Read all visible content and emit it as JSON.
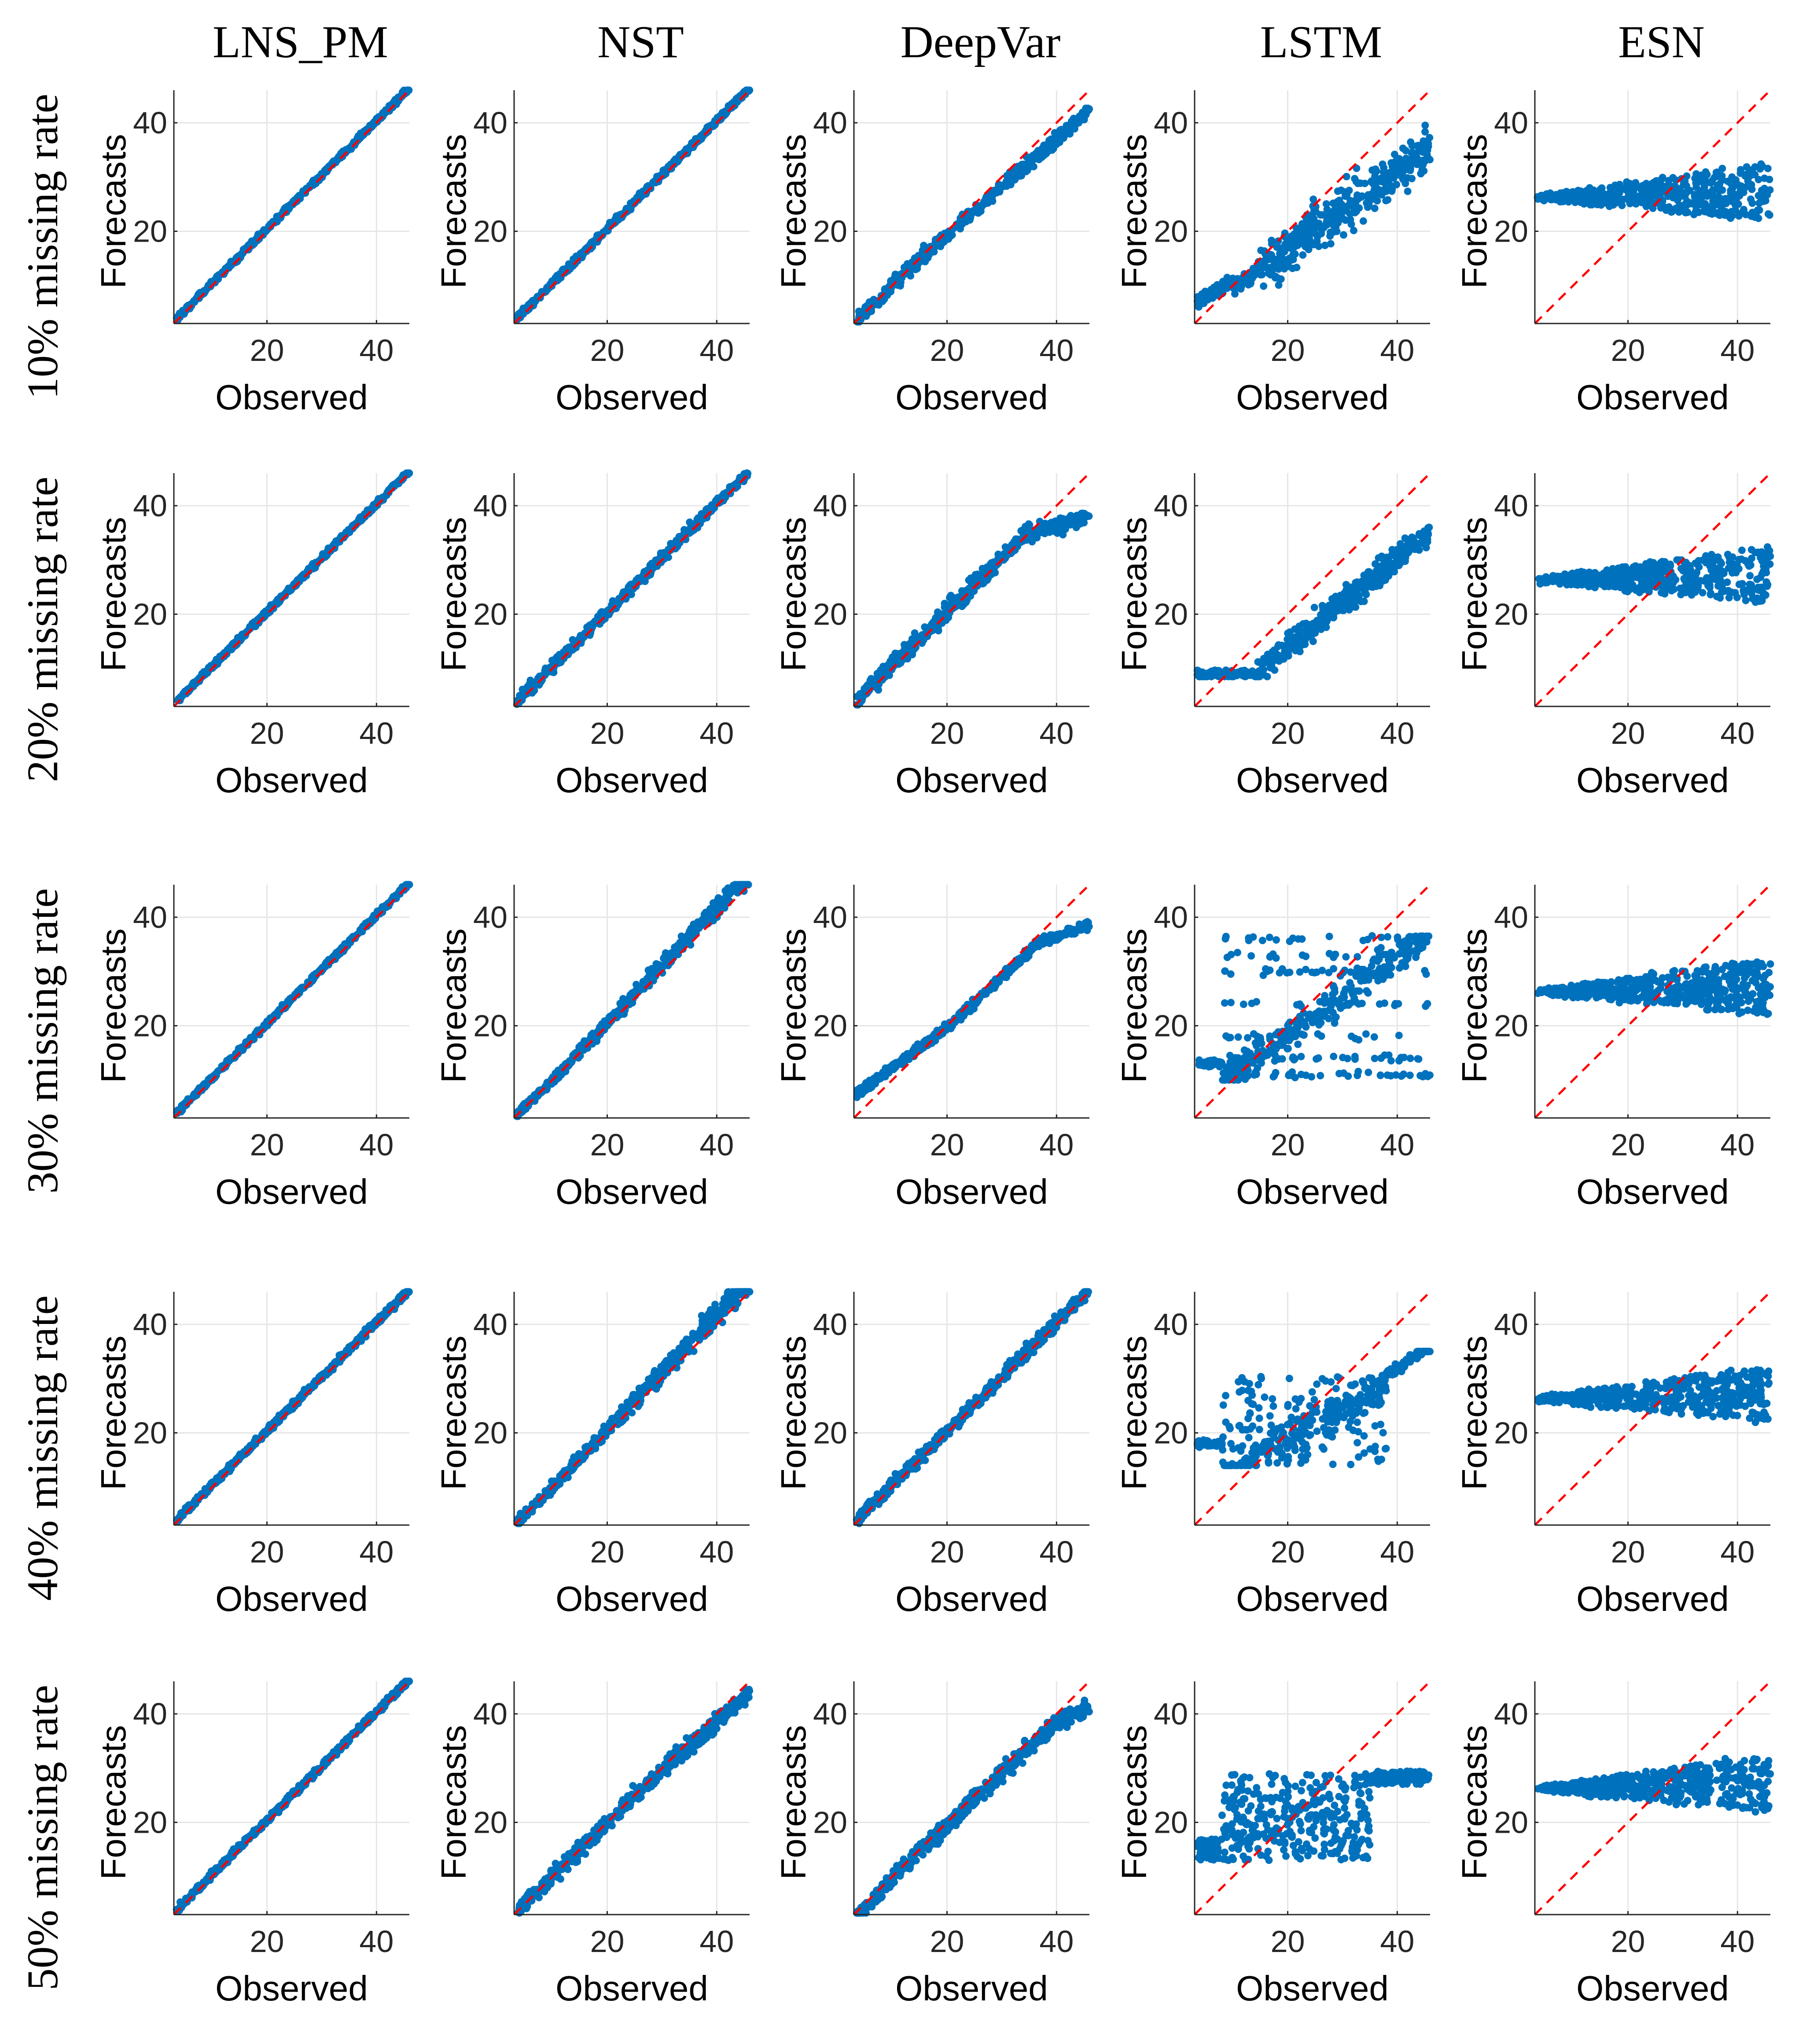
{
  "figure": {
    "column_titles": [
      "LNS_PM",
      "NST",
      "DeepVar",
      "LSTM",
      "ESN"
    ],
    "row_labels": [
      "10% missing rate",
      "20% missing rate",
      "30% missing rate",
      "40% missing rate",
      "50% missing rate"
    ]
  },
  "colors": {
    "points": "#0072bd",
    "reference_line": "#ff0000",
    "grid": "#e6e6e6",
    "axis": "#262626"
  },
  "chart_data": {
    "type": "scatter",
    "xlabel": "Observed",
    "ylabel": "Forecasts",
    "xlim": [
      3,
      46
    ],
    "ylim": [
      3,
      46
    ],
    "xticks": [
      20,
      40
    ],
    "yticks": [
      20,
      40
    ],
    "grid": true,
    "reference_line": "y = x (red dashed)",
    "panels": [
      {
        "row": 0,
        "col": 0,
        "model": "LNS_PM",
        "rate": "10%",
        "pattern": "tight",
        "spread": 0.5
      },
      {
        "row": 0,
        "col": 1,
        "model": "NST",
        "rate": "10%",
        "pattern": "tight",
        "spread": 0.6
      },
      {
        "row": 0,
        "col": 2,
        "model": "DeepVar",
        "rate": "10%",
        "pattern": "under",
        "spread": 1.2
      },
      {
        "row": 0,
        "col": 3,
        "model": "LSTM",
        "rate": "10%",
        "pattern": "lstm1",
        "spread": 3.5
      },
      {
        "row": 0,
        "col": 4,
        "model": "ESN",
        "rate": "10%",
        "pattern": "esn",
        "spread": 0
      },
      {
        "row": 1,
        "col": 0,
        "model": "LNS_PM",
        "rate": "20%",
        "pattern": "tight",
        "spread": 0.5
      },
      {
        "row": 1,
        "col": 1,
        "model": "NST",
        "rate": "20%",
        "pattern": "tight",
        "spread": 1.0
      },
      {
        "row": 1,
        "col": 2,
        "model": "DeepVar",
        "rate": "20%",
        "pattern": "curve2",
        "spread": 1.6
      },
      {
        "row": 1,
        "col": 3,
        "model": "LSTM",
        "rate": "20%",
        "pattern": "lstm2",
        "spread": 2.5
      },
      {
        "row": 1,
        "col": 4,
        "model": "ESN",
        "rate": "20%",
        "pattern": "esn",
        "spread": 0
      },
      {
        "row": 2,
        "col": 0,
        "model": "LNS_PM",
        "rate": "30%",
        "pattern": "tight",
        "spread": 0.5
      },
      {
        "row": 2,
        "col": 1,
        "model": "NST",
        "rate": "30%",
        "pattern": "over",
        "spread": 1.4
      },
      {
        "row": 2,
        "col": 2,
        "model": "DeepVar",
        "rate": "30%",
        "pattern": "scurve",
        "spread": 0.8
      },
      {
        "row": 2,
        "col": 3,
        "model": "LSTM",
        "rate": "30%",
        "pattern": "lstm3",
        "spread": 3.0
      },
      {
        "row": 2,
        "col": 4,
        "model": "ESN",
        "rate": "30%",
        "pattern": "esn",
        "spread": 0
      },
      {
        "row": 3,
        "col": 0,
        "model": "LNS_PM",
        "rate": "40%",
        "pattern": "tight",
        "spread": 0.6
      },
      {
        "row": 3,
        "col": 1,
        "model": "NST",
        "rate": "40%",
        "pattern": "over",
        "spread": 1.6
      },
      {
        "row": 3,
        "col": 2,
        "model": "DeepVar",
        "rate": "40%",
        "pattern": "tight",
        "spread": 1.2
      },
      {
        "row": 3,
        "col": 3,
        "model": "LSTM",
        "rate": "40%",
        "pattern": "lstm4",
        "spread": 4.0
      },
      {
        "row": 3,
        "col": 4,
        "model": "ESN",
        "rate": "40%",
        "pattern": "esn",
        "spread": 0
      },
      {
        "row": 4,
        "col": 0,
        "model": "LNS_PM",
        "rate": "50%",
        "pattern": "tight",
        "spread": 0.6
      },
      {
        "row": 4,
        "col": 1,
        "model": "NST",
        "rate": "50%",
        "pattern": "under50",
        "spread": 1.5
      },
      {
        "row": 4,
        "col": 2,
        "model": "DeepVar",
        "rate": "50%",
        "pattern": "deep50",
        "spread": 1.5
      },
      {
        "row": 4,
        "col": 3,
        "model": "LSTM",
        "rate": "50%",
        "pattern": "lstm5",
        "spread": 4.0
      },
      {
        "row": 4,
        "col": 4,
        "model": "ESN",
        "rate": "50%",
        "pattern": "esn",
        "spread": 0
      }
    ]
  }
}
